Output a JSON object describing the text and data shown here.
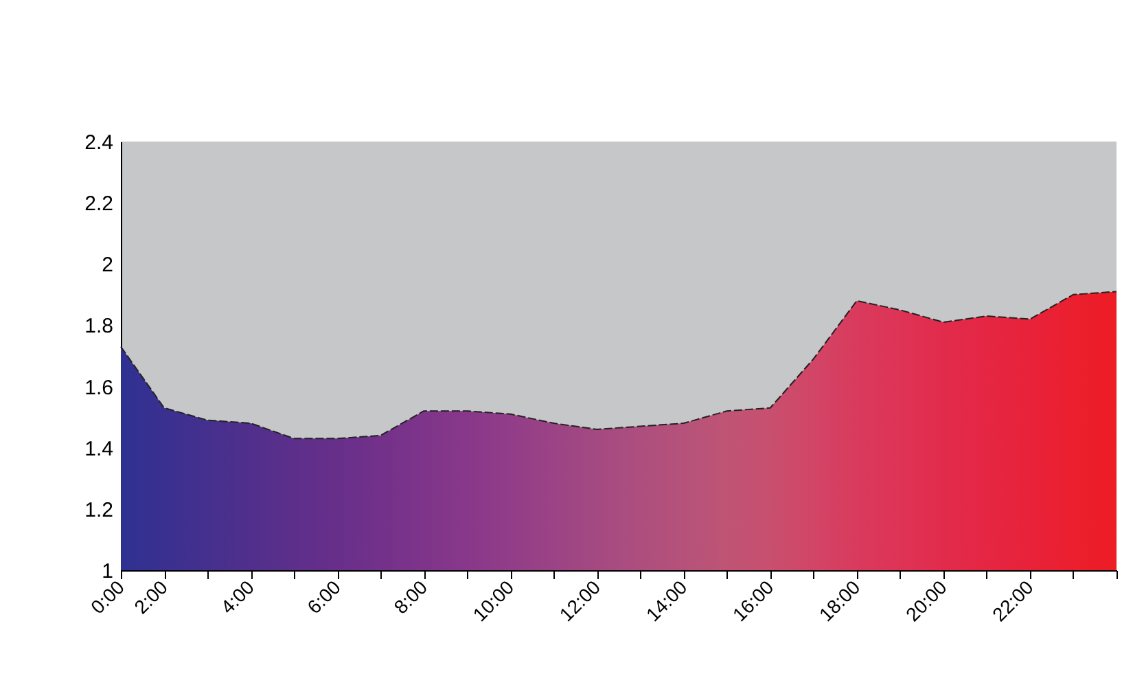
{
  "chart_data": {
    "type": "area",
    "categories": [
      "0:00",
      "2:00",
      null,
      "4:00",
      null,
      "6:00",
      null,
      "8:00",
      null,
      "10:00",
      null,
      "12:00",
      null,
      "14:00",
      null,
      "16:00",
      null,
      "18:00",
      null,
      "20:00",
      null,
      "22:00",
      null,
      null
    ],
    "series": [
      {
        "values": [
          1.73,
          1.53,
          1.49,
          1.48,
          1.43,
          1.43,
          1.44,
          1.52,
          1.52,
          1.51,
          1.48,
          1.46,
          1.47,
          1.48,
          1.52,
          1.53,
          1.69,
          1.88,
          1.85,
          1.81,
          1.83,
          1.82,
          1.9,
          1.91
        ],
        "colors": [
          "#2e3192",
          "#3a3090",
          "#45308e",
          "#512f8c",
          "#5c2f8b",
          "#672f8a",
          "#73318a",
          "#7e348a",
          "#88388a",
          "#923d88",
          "#9b4385",
          "#a44981",
          "#ad4e7e",
          "#b6527a",
          "#bf5475",
          "#c84f6f",
          "#d24566",
          "#d93a5d",
          "#de3355",
          "#e22b4c",
          "#e52643",
          "#e8223a",
          "#eb1f2f",
          "#ed1c24"
        ]
      }
    ],
    "ylim": [
      1,
      2.4
    ],
    "yticks": [
      1,
      1.2,
      1.4,
      1.6,
      1.8,
      2,
      2.2,
      2.4
    ],
    "grid": false
  }
}
